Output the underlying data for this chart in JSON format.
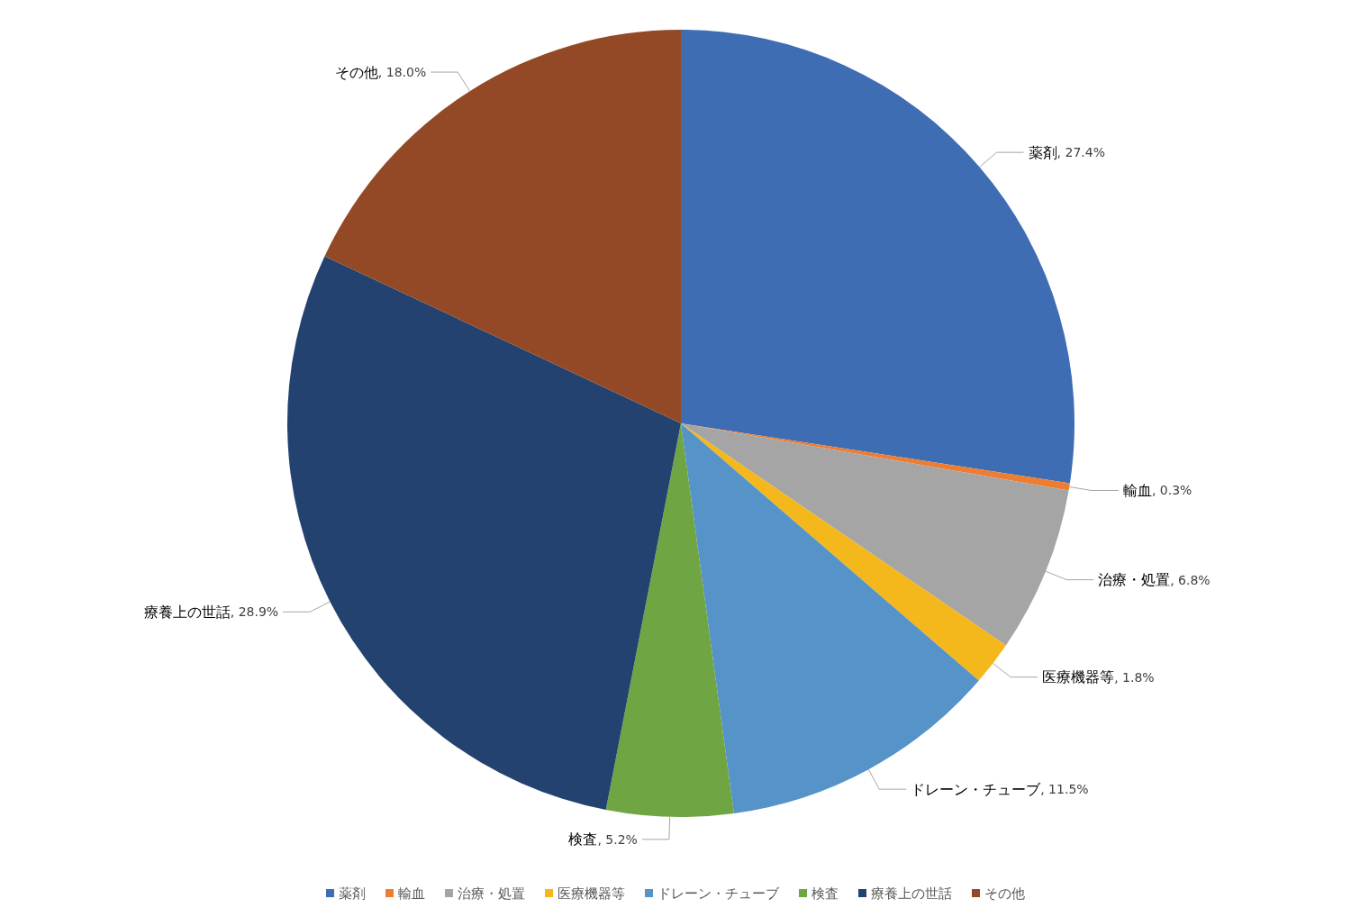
{
  "chart_data": {
    "type": "pie",
    "categories": [
      "薬剤",
      "輸血",
      "治療・処置",
      "医療機器等",
      "ドレーン・チューブ",
      "検査",
      "療養上の世話",
      "その他"
    ],
    "values": [
      27.4,
      0.3,
      6.8,
      1.8,
      11.5,
      5.2,
      28.9,
      18.0
    ],
    "value_labels": [
      ", 27.4%",
      ", 0.3%",
      ", 6.8%",
      ", 1.8%",
      ", 11.5%",
      ", 5.2%",
      ", 28.9%",
      ", 18.0%"
    ],
    "colors": [
      "#3f6db3",
      "#ed7d31",
      "#a5a5a5",
      "#f4b81c",
      "#5593c8",
      "#70a544",
      "#23426f",
      "#934925"
    ],
    "legend": "bottom"
  }
}
